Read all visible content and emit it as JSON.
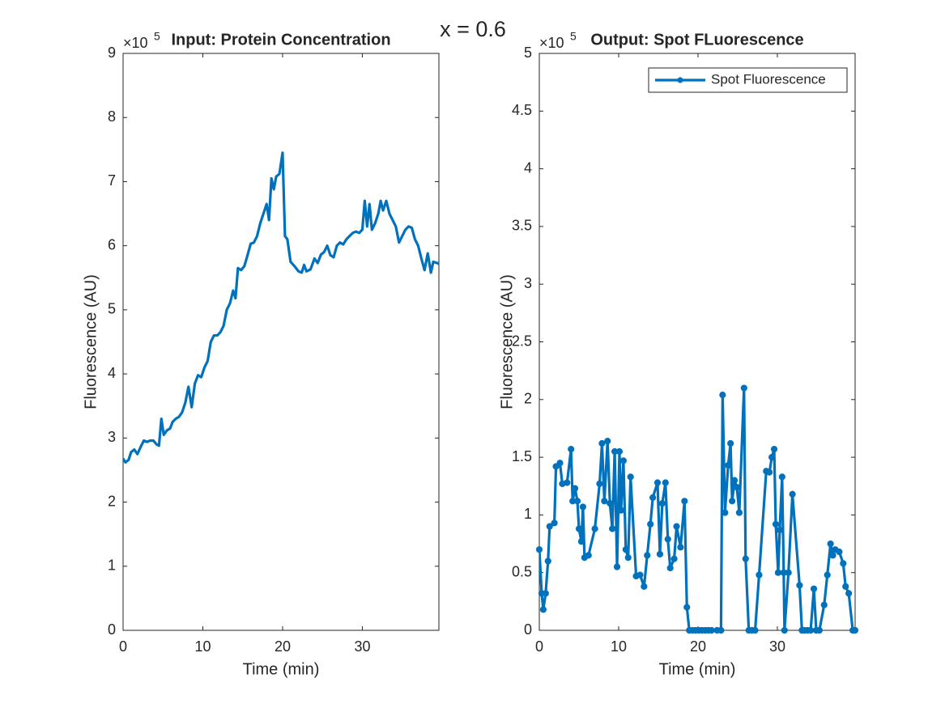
{
  "figure_title": "x = 0.6",
  "chart_data": [
    {
      "type": "line",
      "title": "Input: Protein Concentration",
      "x_label": "Time (min)",
      "y_label": "Fluorescence (AU)",
      "y_exponent_base": "×10",
      "y_exponent": 5,
      "xlim": [
        0,
        39.6
      ],
      "xticks": [
        0,
        10,
        20,
        30
      ],
      "ylim": [
        0,
        9
      ],
      "yticks": [
        0,
        1,
        2,
        3,
        4,
        5,
        6,
        7,
        8,
        9
      ],
      "color": "#0072bd",
      "markers": false,
      "x": [
        0,
        0.3,
        0.7,
        1.0,
        1.4,
        1.8,
        2.2,
        2.6,
        3.0,
        3.4,
        3.8,
        4.2,
        4.5,
        4.8,
        5.1,
        5.5,
        5.9,
        6.2,
        6.6,
        7.0,
        7.4,
        7.8,
        8.2,
        8.6,
        9.0,
        9.4,
        9.8,
        10.2,
        10.6,
        11.0,
        11.4,
        11.8,
        12.2,
        12.6,
        13.0,
        13.4,
        13.8,
        14.1,
        14.4,
        14.8,
        15.2,
        15.6,
        16.0,
        16.4,
        16.8,
        17.2,
        17.6,
        18.0,
        18.3,
        18.6,
        18.9,
        19.2,
        19.6,
        20.0,
        20.3,
        20.6,
        21.0,
        21.5,
        22.0,
        22.4,
        22.7,
        23.0,
        23.5,
        24.0,
        24.4,
        24.8,
        25.2,
        25.6,
        26.0,
        26.4,
        26.8,
        27.2,
        27.6,
        28.0,
        28.4,
        28.8,
        29.2,
        29.6,
        30.0,
        30.3,
        30.6,
        30.9,
        31.2,
        31.6,
        32.0,
        32.3,
        32.6,
        33.0,
        33.4,
        33.8,
        34.2,
        34.6,
        35.0,
        35.4,
        35.8,
        36.2,
        36.6,
        37.0,
        37.4,
        37.8,
        38.2,
        38.6,
        38.9,
        39.6
      ],
      "values": [
        2.68,
        2.62,
        2.66,
        2.78,
        2.82,
        2.75,
        2.86,
        2.96,
        2.94,
        2.96,
        2.96,
        2.9,
        2.88,
        3.3,
        3.05,
        3.12,
        3.15,
        3.25,
        3.3,
        3.33,
        3.4,
        3.55,
        3.8,
        3.48,
        3.85,
        3.98,
        3.95,
        4.1,
        4.2,
        4.5,
        4.6,
        4.6,
        4.65,
        4.75,
        5.0,
        5.1,
        5.3,
        5.18,
        5.65,
        5.62,
        5.68,
        5.85,
        6.03,
        6.05,
        6.15,
        6.35,
        6.5,
        6.65,
        6.4,
        7.05,
        6.88,
        7.08,
        7.12,
        7.45,
        6.15,
        6.1,
        5.75,
        5.68,
        5.6,
        5.58,
        5.7,
        5.6,
        5.63,
        5.8,
        5.73,
        5.86,
        5.9,
        6.0,
        5.85,
        5.82,
        6.0,
        6.05,
        6.02,
        6.1,
        6.15,
        6.2,
        6.22,
        6.2,
        6.25,
        6.7,
        6.3,
        6.65,
        6.25,
        6.35,
        6.5,
        6.7,
        6.55,
        6.7,
        6.5,
        6.4,
        6.3,
        6.05,
        6.15,
        6.25,
        6.3,
        6.28,
        6.1,
        6.0,
        5.8,
        5.62,
        5.88,
        5.58,
        5.75,
        5.72
      ]
    },
    {
      "type": "line",
      "title": "Output: Spot FLuorescence",
      "x_label": "Time (min)",
      "y_label": "Fluorescence (AU)",
      "y_exponent_base": "×10",
      "y_exponent": 5,
      "xlim": [
        0,
        39.8
      ],
      "xticks": [
        0,
        10,
        20,
        30
      ],
      "ylim": [
        0,
        5
      ],
      "yticks": [
        0,
        0.5,
        1,
        1.5,
        2,
        2.5,
        3,
        3.5,
        4,
        4.5,
        5
      ],
      "legend": "northeast",
      "markers": true,
      "x": [
        0,
        0.3,
        0.5,
        0.8,
        1.1,
        1.3,
        1.9,
        2.1,
        2.6,
        2.9,
        3.5,
        4.0,
        4.2,
        4.5,
        4.8,
        5.0,
        5.3,
        5.5,
        5.7,
        6.2,
        7.0,
        7.6,
        7.9,
        8.2,
        8.6,
        8.9,
        9.2,
        9.5,
        9.8,
        10.1,
        10.3,
        10.6,
        10.9,
        11.2,
        11.5,
        12.2,
        12.7,
        13.2,
        13.6,
        14.0,
        14.3,
        14.9,
        15.2,
        15.5,
        15.9,
        16.2,
        16.5,
        17.0,
        17.3,
        17.8,
        18.3,
        18.6,
        18.9,
        19.3,
        19.7,
        20.1,
        20.5,
        20.9,
        21.3,
        21.7,
        22.4,
        22.9,
        23.1,
        23.4,
        23.8,
        24.1,
        24.3,
        24.6,
        24.9,
        25.2,
        25.8,
        26.0,
        26.4,
        26.8,
        27.2,
        27.7,
        28.6,
        29.0,
        29.3,
        29.6,
        29.8,
        30.1,
        30.3,
        30.6,
        30.8,
        30.9,
        31.4,
        31.9,
        32.8,
        33.1,
        33.4,
        33.8,
        34.2,
        34.6,
        34.9,
        35.3,
        35.9,
        36.3,
        36.7,
        37.0,
        37.3,
        37.8,
        38.3,
        38.6,
        39.0,
        39.5,
        39.8
      ],
      "series": [
        {
          "name": "Spot Fluorescence",
          "color": "#0072bd",
          "values": [
            0.7,
            0.32,
            0.18,
            0.32,
            0.6,
            0.9,
            0.93,
            1.42,
            1.45,
            1.27,
            1.28,
            1.57,
            1.12,
            1.23,
            1.12,
            0.88,
            0.77,
            1.07,
            0.63,
            0.65,
            0.88,
            1.27,
            1.62,
            1.12,
            1.64,
            1.1,
            0.88,
            1.55,
            0.55,
            1.55,
            1.04,
            1.47,
            0.7,
            0.63,
            1.33,
            0.47,
            0.48,
            0.38,
            0.65,
            0.92,
            1.15,
            1.28,
            0.66,
            1.1,
            1.28,
            0.79,
            0.54,
            0.62,
            0.9,
            0.72,
            1.12,
            0.2,
            0,
            0,
            0,
            0,
            0,
            0,
            0,
            0,
            0,
            0,
            2.04,
            1.02,
            1.43,
            1.62,
            1.12,
            1.3,
            1.24,
            1.02,
            2.1,
            0.62,
            0,
            0,
            0,
            0.48,
            1.38,
            1.37,
            1.5,
            1.57,
            0.92,
            0.5,
            0.87,
            1.33,
            0.5,
            0,
            0.5,
            1.18,
            0.39,
            0,
            0,
            0,
            0,
            0.36,
            0,
            0,
            0.22,
            0.48,
            0.75,
            0.65,
            0.7,
            0.68,
            0.58,
            0.38,
            0.32,
            0,
            0
          ]
        }
      ]
    }
  ]
}
